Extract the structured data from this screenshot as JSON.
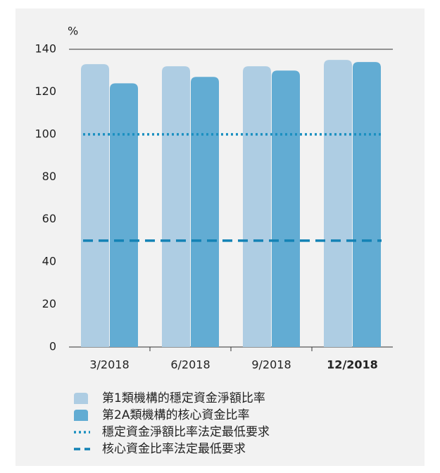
{
  "chart_data": {
    "type": "bar",
    "y_unit": "%",
    "categories": [
      "3/2018",
      "6/2018",
      "9/2018",
      "12/2018"
    ],
    "highlight": "12/2018",
    "series": [
      {
        "name": "第1類機構的穩定資金淨額比率",
        "color": "#aecde3",
        "values": [
          133,
          132,
          132,
          135
        ]
      },
      {
        "name": "第2A類機構的核心資金比率",
        "color": "#62acd3",
        "values": [
          124,
          127,
          130,
          134
        ]
      }
    ],
    "reference_lines": [
      {
        "name": "穩定資金淨額比率法定最低要求",
        "value": 100,
        "color": "#1a8fc0",
        "style": "dotted"
      },
      {
        "name": "核心資金比率法定最低要求",
        "value": 50,
        "color": "#1382b5",
        "style": "dashed"
      }
    ],
    "ylim": [
      0,
      140
    ],
    "yticks": [
      0,
      20,
      40,
      60,
      80,
      100,
      120,
      140
    ],
    "grid": false
  }
}
